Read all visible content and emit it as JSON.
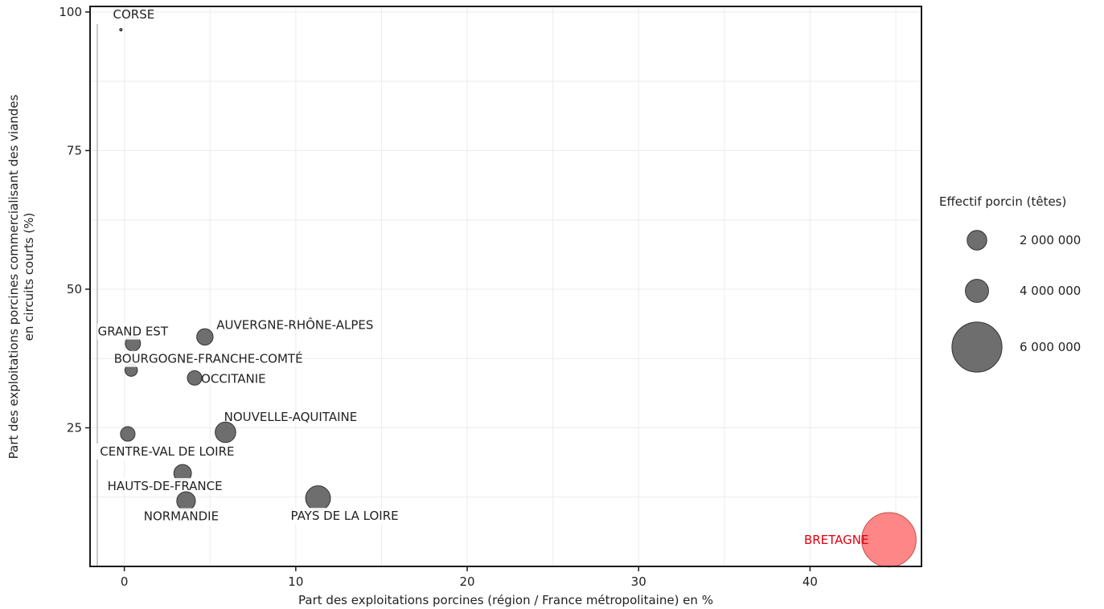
{
  "chart_data": {
    "type": "scatter",
    "title": "",
    "xlabel": "Part des exploitations porcines (région / France métropolitaine) en %",
    "ylabel_lines": [
      "Part des exploitations porcines commercialisant des viandes",
      "en circuits courts (%)"
    ],
    "xlim": [
      -2,
      46.5
    ],
    "ylim": [
      0,
      101
    ],
    "x_ticks": [
      "0",
      "10",
      "20",
      "30",
      "40"
    ],
    "y_ticks": [
      "25",
      "50",
      "75",
      "100"
    ],
    "grid": true,
    "highlight_color": "#ff7f7f",
    "highlight_label_color": "#e1000f",
    "point_color": "#555555",
    "points": [
      {
        "name": "CORSE",
        "x": -0.2,
        "y": 96.8,
        "size": 15000,
        "highlight": false
      },
      {
        "name": "GRAND EST",
        "x": 0.5,
        "y": 40.2,
        "size": 600000,
        "highlight": false
      },
      {
        "name": "AUVERGNE-RHÔNE-ALPES",
        "x": 4.7,
        "y": 41.4,
        "size": 700000,
        "highlight": false
      },
      {
        "name": "BOURGOGNE-FRANCHE-COMTÉ",
        "x": 0.4,
        "y": 35.4,
        "size": 400000,
        "highlight": false
      },
      {
        "name": "OCCITANIE",
        "x": 4.1,
        "y": 34.0,
        "size": 550000,
        "highlight": false
      },
      {
        "name": "NOUVELLE-AQUITAINE",
        "x": 5.9,
        "y": 24.2,
        "size": 1100000,
        "highlight": false
      },
      {
        "name": "CENTRE-VAL DE LOIRE",
        "x": 0.2,
        "y": 23.9,
        "size": 550000,
        "highlight": false
      },
      {
        "name": "HAUTS-DE-FRANCE",
        "x": 3.4,
        "y": 16.8,
        "size": 800000,
        "highlight": false
      },
      {
        "name": "NORMANDIE",
        "x": 3.6,
        "y": 11.8,
        "size": 900000,
        "highlight": false
      },
      {
        "name": "PAYS DE LA LOIRE",
        "x": 11.3,
        "y": 12.3,
        "size": 1600000,
        "highlight": false
      },
      {
        "name": "BRETAGNE",
        "x": 44.6,
        "y": 4.8,
        "size": 7700000,
        "highlight": true
      }
    ],
    "legend": {
      "title": "Effectif porcin (têtes)",
      "position": "right",
      "entries": [
        {
          "label": "2 000 000",
          "size": 1000000
        },
        {
          "label": "4 000 000",
          "size": 1400000
        },
        {
          "label": "6 000 000",
          "size": 6500000
        }
      ]
    }
  }
}
